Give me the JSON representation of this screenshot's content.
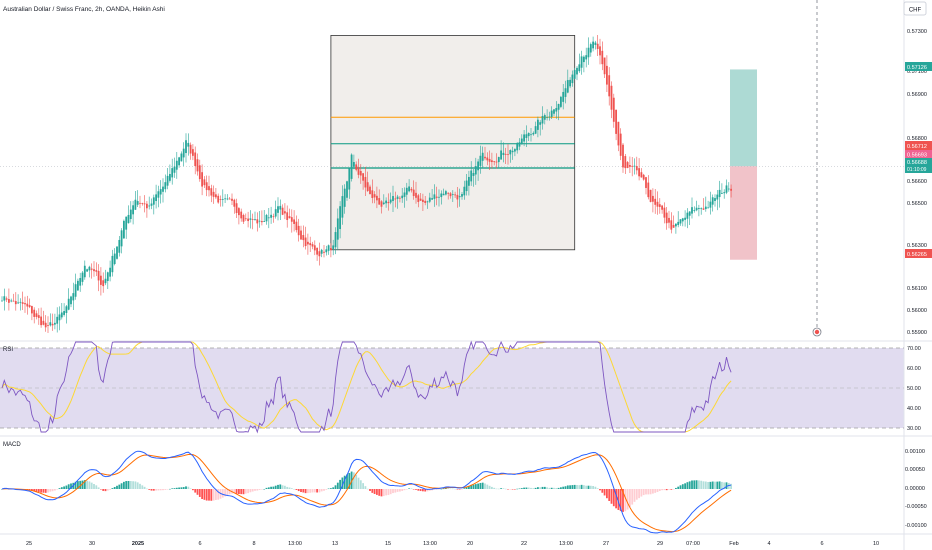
{
  "header": {
    "title": "Australian Dollar / Swiss Franc, 2h, OANDA, Heikin Ashi",
    "currency_button": "CHF"
  },
  "price_axis": {
    "ticks": [
      "0.57300",
      "0.57100",
      "0.56900",
      "0.56800",
      "0.56600",
      "0.56500",
      "0.56300",
      "0.56100",
      "0.56000",
      "0.55900"
    ],
    "tick_values": [
      0.573,
      0.571,
      0.569,
      0.568,
      0.566,
      0.565,
      0.563,
      0.561,
      0.56,
      0.559
    ]
  },
  "price_labels": {
    "take_profit": "0.57126",
    "entry_top": "0.56712",
    "entry_mid": "0.56693",
    "current": "0.56688",
    "countdown": "01:10:09",
    "stop": "0.56265"
  },
  "time_axis": {
    "labels": [
      "25",
      "30",
      "2025",
      "6",
      "8",
      "13:00",
      "13",
      "15",
      "13:00",
      "20",
      "22",
      "13:00",
      "27",
      "29",
      "07:00",
      "Feb",
      "4",
      "6",
      "10"
    ]
  },
  "rsi": {
    "label": "RSI",
    "ticks": [
      "70.00",
      "60.00",
      "50.00",
      "40.00",
      "30.00"
    ],
    "tick_values": [
      70,
      60,
      50,
      40,
      30
    ],
    "band": [
      30,
      70
    ]
  },
  "macd": {
    "label": "MACD",
    "ticks": [
      "0.00100",
      "0.00050",
      "0.00000",
      "-0.00050",
      "-0.00100"
    ],
    "tick_values": [
      0.001,
      0.0005,
      0,
      -0.0005,
      -0.001
    ]
  },
  "colors": {
    "up": "#26a69a",
    "down": "#ef5350",
    "rsi_line": "#7e57c2",
    "rsi_ma": "#fdd835",
    "macd_line": "#2962ff",
    "signal_line": "#ff6d00",
    "fib_orange": "#ff9800",
    "fib_green": "#089981",
    "tp_zone": "#9fd3cc",
    "sl_zone": "#efb8c0",
    "rsi_band": "#e1dcf0"
  },
  "chart_data": {
    "type": "candlestick",
    "instrument": "AUD/CHF",
    "timeframe": "2h",
    "y_range": [
      0.5586,
      0.5738
    ],
    "anchors": [
      [
        0,
        0.561
      ],
      [
        10,
        0.5605
      ],
      [
        20,
        0.5595
      ],
      [
        28,
        0.5603
      ],
      [
        36,
        0.5625
      ],
      [
        44,
        0.5615
      ],
      [
        52,
        0.564
      ],
      [
        58,
        0.5655
      ],
      [
        64,
        0.565
      ],
      [
        72,
        0.5662
      ],
      [
        80,
        0.568
      ],
      [
        88,
        0.566
      ],
      [
        96,
        0.5652
      ],
      [
        104,
        0.5648
      ],
      [
        112,
        0.5643
      ],
      [
        120,
        0.565
      ],
      [
        128,
        0.564
      ],
      [
        136,
        0.563
      ],
      [
        144,
        0.5632
      ],
      [
        152,
        0.5672
      ],
      [
        160,
        0.5655
      ],
      [
        168,
        0.565
      ],
      [
        176,
        0.5658
      ],
      [
        184,
        0.5652
      ],
      [
        192,
        0.5658
      ],
      [
        200,
        0.5655
      ],
      [
        208,
        0.5672
      ],
      [
        216,
        0.5675
      ],
      [
        224,
        0.5678
      ],
      [
        230,
        0.5685
      ],
      [
        238,
        0.5693
      ],
      [
        246,
        0.5706
      ],
      [
        252,
        0.5721
      ],
      [
        258,
        0.5724
      ],
      [
        264,
        0.57
      ],
      [
        270,
        0.5667
      ],
      [
        276,
        0.5665
      ],
      [
        284,
        0.565
      ],
      [
        292,
        0.564
      ],
      [
        300,
        0.5648
      ],
      [
        308,
        0.5652
      ],
      [
        316,
        0.566
      ]
    ],
    "range_box": {
      "high": 0.5728,
      "low": 0.5631,
      "levels": [
        0.5691,
        0.5679,
        0.5668
      ]
    },
    "position": {
      "take_profit": 0.57126,
      "entry": 0.56688,
      "stop": 0.56265
    },
    "rsi_range": [
      30,
      70
    ],
    "macd_range": [
      -0.0012,
      0.0012
    ]
  }
}
